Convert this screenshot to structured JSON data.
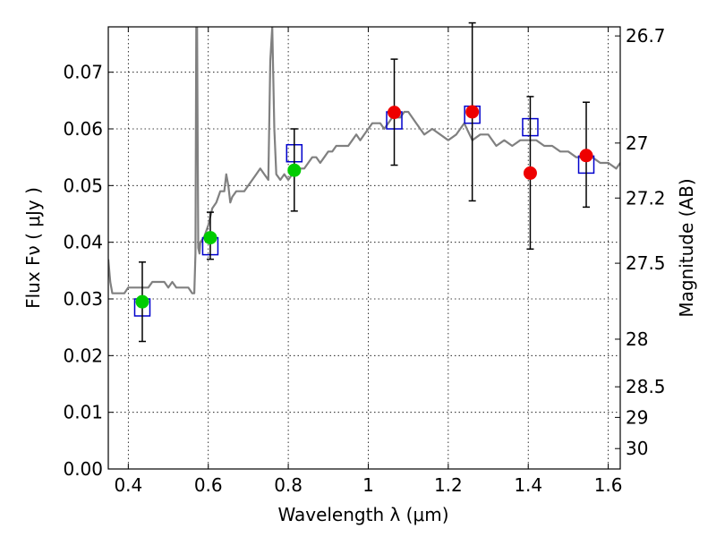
{
  "chart_data": {
    "type": "scatter",
    "title": "",
    "xlabel": "Wavelength  λ (μm)",
    "ylabel": "Flux  Fν  ( μJy )",
    "ylabel_right": "Magnitude (AB)",
    "xlim": [
      0.35,
      1.63
    ],
    "ylim": [
      0.0,
      0.078
    ],
    "grid": true,
    "x_ticks": [
      0.4,
      0.6,
      0.8,
      1.0,
      1.2,
      1.4,
      1.6
    ],
    "x_tick_labels": [
      "0.4",
      "0.6",
      "0.8",
      "1",
      "1.2",
      "1.4",
      "1.6"
    ],
    "y_ticks": [
      0.0,
      0.01,
      0.02,
      0.03,
      0.04,
      0.05,
      0.06,
      0.07
    ],
    "y_tick_labels": [
      "0.00",
      "0.01",
      "0.02",
      "0.03",
      "0.04",
      "0.05",
      "0.06",
      "0.07"
    ],
    "right_ticks": [
      {
        "label": "26.7",
        "flux": 0.0764
      },
      {
        "label": "27",
        "flux": 0.0575
      },
      {
        "label": "27.2",
        "flux": 0.0478
      },
      {
        "label": "27.5",
        "flux": 0.0363
      },
      {
        "label": "28",
        "flux": 0.0229
      },
      {
        "label": "28.5",
        "flux": 0.0145
      },
      {
        "label": "29",
        "flux": 0.0091
      },
      {
        "label": "30",
        "flux": 0.0036
      }
    ],
    "series": [
      {
        "name": "Model spectrum",
        "kind": "line",
        "color": "#808080",
        "x": [
          0.35,
          0.355,
          0.36,
          0.37,
          0.38,
          0.39,
          0.4,
          0.41,
          0.42,
          0.43,
          0.44,
          0.45,
          0.46,
          0.47,
          0.48,
          0.49,
          0.5,
          0.51,
          0.52,
          0.53,
          0.54,
          0.55,
          0.56,
          0.565,
          0.568,
          0.57,
          0.572,
          0.575,
          0.578,
          0.58,
          0.59,
          0.6,
          0.61,
          0.62,
          0.63,
          0.64,
          0.645,
          0.65,
          0.655,
          0.66,
          0.67,
          0.68,
          0.69,
          0.7,
          0.71,
          0.72,
          0.73,
          0.74,
          0.75,
          0.755,
          0.76,
          0.765,
          0.77,
          0.78,
          0.79,
          0.8,
          0.81,
          0.82,
          0.83,
          0.84,
          0.85,
          0.86,
          0.87,
          0.88,
          0.89,
          0.9,
          0.91,
          0.92,
          0.93,
          0.94,
          0.95,
          0.96,
          0.97,
          0.98,
          0.99,
          1.0,
          1.01,
          1.02,
          1.03,
          1.04,
          1.05,
          1.06,
          1.07,
          1.08,
          1.09,
          1.1,
          1.12,
          1.14,
          1.16,
          1.18,
          1.2,
          1.22,
          1.24,
          1.26,
          1.28,
          1.3,
          1.32,
          1.34,
          1.36,
          1.38,
          1.4,
          1.42,
          1.44,
          1.46,
          1.48,
          1.5,
          1.52,
          1.54,
          1.56,
          1.58,
          1.6,
          1.62,
          1.63
        ],
        "y": [
          0.037,
          0.033,
          0.031,
          0.031,
          0.031,
          0.031,
          0.032,
          0.032,
          0.032,
          0.032,
          0.032,
          0.032,
          0.033,
          0.033,
          0.033,
          0.033,
          0.032,
          0.033,
          0.032,
          0.032,
          0.032,
          0.032,
          0.031,
          0.031,
          0.038,
          0.078,
          0.078,
          0.039,
          0.038,
          0.04,
          0.041,
          0.043,
          0.046,
          0.047,
          0.049,
          0.049,
          0.052,
          0.05,
          0.047,
          0.048,
          0.049,
          0.049,
          0.049,
          0.05,
          0.051,
          0.052,
          0.053,
          0.052,
          0.051,
          0.072,
          0.078,
          0.06,
          0.052,
          0.051,
          0.052,
          0.051,
          0.052,
          0.053,
          0.053,
          0.053,
          0.054,
          0.055,
          0.055,
          0.054,
          0.055,
          0.056,
          0.056,
          0.057,
          0.057,
          0.057,
          0.057,
          0.058,
          0.059,
          0.058,
          0.059,
          0.06,
          0.061,
          0.061,
          0.061,
          0.06,
          0.061,
          0.062,
          0.062,
          0.062,
          0.063,
          0.063,
          0.061,
          0.059,
          0.06,
          0.059,
          0.058,
          0.059,
          0.061,
          0.058,
          0.059,
          0.059,
          0.057,
          0.058,
          0.057,
          0.058,
          0.058,
          0.058,
          0.057,
          0.057,
          0.056,
          0.056,
          0.055,
          0.055,
          0.055,
          0.054,
          0.054,
          0.053,
          0.054
        ]
      },
      {
        "name": "Model photometry",
        "kind": "open-square",
        "color": "#0000cc",
        "x": [
          0.435,
          0.605,
          0.815,
          1.065,
          1.26,
          1.405,
          1.545
        ],
        "y": [
          0.0285,
          0.0393,
          0.0557,
          0.0615,
          0.0625,
          0.0603,
          0.0537
        ]
      },
      {
        "name": "Observed (green)",
        "kind": "filled-circle",
        "color": "#00cc00",
        "x": [
          0.435,
          0.605,
          0.815
        ],
        "y": [
          0.0295,
          0.0408,
          0.0527
        ],
        "yerr_low": [
          0.007,
          0.0038,
          0.0072
        ],
        "yerr_high": [
          0.007,
          0.0045,
          0.0073
        ]
      },
      {
        "name": "Observed (red)",
        "kind": "filled-circle",
        "color": "#ee0000",
        "x": [
          1.065,
          1.26,
          1.405,
          1.545
        ],
        "y": [
          0.0629,
          0.063,
          0.0522,
          0.0553
        ],
        "yerr_low": [
          0.0093,
          0.0157,
          0.0134,
          0.0091
        ],
        "yerr_high": [
          0.0094,
          0.0157,
          0.0135,
          0.0094
        ]
      }
    ]
  },
  "spectrum_spike_labels": []
}
